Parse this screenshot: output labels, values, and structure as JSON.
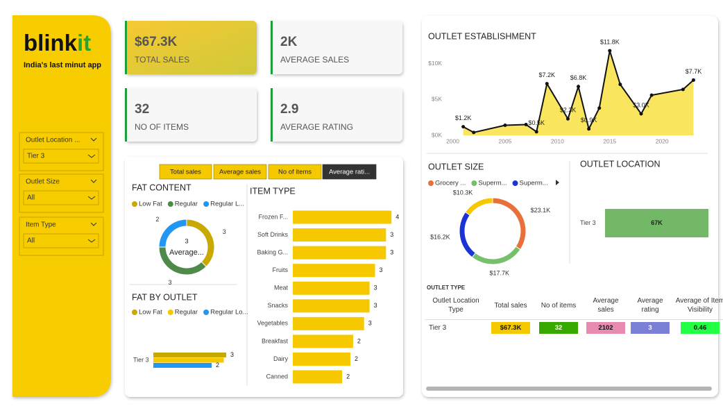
{
  "sidebar": {
    "logo": "blink",
    "logo_accent": "it",
    "tagline": "India's last minut app",
    "filters": [
      {
        "label": "Outlet Location ...",
        "value": "Tier 3"
      },
      {
        "label": "Outlet Size",
        "value": "All"
      },
      {
        "label": "Item Type",
        "value": "All"
      }
    ]
  },
  "cards": [
    {
      "value": "$67.3K",
      "label": "TOTAL SALES"
    },
    {
      "value": "2K",
      "label": "AVERAGE SALES"
    },
    {
      "value": "32",
      "label": "NO OF ITEMS"
    },
    {
      "value": "2.9",
      "label": "AVERAGE RATING"
    }
  ],
  "tabs": {
    "items": [
      "Total sales",
      "Average sales",
      "No of items",
      "Average rati..."
    ],
    "active": 3
  },
  "chart_data": [
    {
      "type": "pie",
      "title": "FAT CONTENT",
      "categories": [
        "Low Fat",
        "Regular",
        "Regular L..."
      ],
      "values": [
        3,
        3,
        2
      ],
      "colors": [
        "#c9a800",
        "#4f8a4b",
        "#2196f3"
      ],
      "center_value": 3,
      "center_label": "Average..."
    },
    {
      "type": "bar",
      "title": "FAT BY OUTLET",
      "categories": [
        "Tier 3"
      ],
      "xlim": [
        0,
        3.2
      ],
      "series": [
        {
          "name": "Low Fat",
          "color": "#c9a800",
          "values": [
            3
          ]
        },
        {
          "name": "Regular",
          "color": "#f5c800",
          "values": [
            2.9
          ],
          "labels": false
        },
        {
          "name": "Regular Lo...",
          "color": "#2196f3",
          "values": [
            2.4
          ],
          "value_labels": [
            "2"
          ]
        }
      ]
    },
    {
      "type": "bar",
      "title": "ITEM TYPE",
      "categories": [
        "Frozen F...",
        "Soft Drinks",
        "Baking G...",
        "Fruits",
        "Meat",
        "Snacks",
        "Vegetables",
        "Breakfast",
        "Dairy",
        "Canned"
      ],
      "values": [
        3.6,
        3.4,
        3.4,
        3.0,
        2.8,
        2.8,
        2.6,
        2.2,
        2.1,
        1.8
      ],
      "value_labels": [
        "4",
        "3",
        "3",
        "3",
        "3",
        "3",
        "3",
        "2",
        "2",
        "2"
      ],
      "color": "#f5c800",
      "xlim": [
        0,
        4
      ]
    },
    {
      "type": "line",
      "title": "OUTLET ESTABLISHMENT",
      "x": [
        2001,
        2002,
        2005,
        2007,
        2008,
        2009,
        2011,
        2012,
        2013,
        2014,
        2015,
        2016,
        2018,
        2019,
        2022,
        2023
      ],
      "values": [
        1200,
        400,
        1400,
        1500,
        500,
        7200,
        2300,
        6800,
        900,
        3800,
        11800,
        7100,
        3000,
        5600,
        6400,
        7700
      ],
      "value_labels": [
        "$1.2K",
        null,
        null,
        null,
        "$0.5K",
        "$7.2K",
        "$2.3K",
        "$6.8K",
        "$0.9K",
        null,
        "$11.8K",
        null,
        "$3.0K",
        null,
        null,
        "$7.7K"
      ],
      "color": "#111111",
      "area_color": "#f9e55e",
      "xlim": [
        1999.5,
        2023.5
      ],
      "xticks": [
        2000,
        2005,
        2010,
        2015,
        2020
      ],
      "ylim": [
        0,
        12000
      ],
      "yticks": [
        {
          "value": 0,
          "label": "$0K"
        },
        {
          "value": 5000,
          "label": "$5K"
        },
        {
          "value": 10000,
          "label": "$10K"
        }
      ]
    },
    {
      "type": "pie",
      "title": "OUTLET SIZE",
      "categories": [
        "Grocery ...",
        "Superm...",
        "Superm...",
        null
      ],
      "values": [
        23100,
        17700,
        16200,
        10300
      ],
      "value_labels": [
        "$23.1K",
        "$17.7K",
        "$16.2K",
        "$10.3K"
      ],
      "colors": [
        "#e8703a",
        "#76bf6b",
        "#1a33d4",
        "#f5c800"
      ]
    },
    {
      "type": "bar",
      "title": "OUTLET LOCATION",
      "categories": [
        "Tier 3"
      ],
      "values": [
        67300
      ],
      "value_labels": [
        "67K"
      ],
      "color": "#72b866",
      "xlim": [
        0,
        70000
      ],
      "label_position": "inside"
    }
  ],
  "table": {
    "title": "OUTLET TYPE",
    "header": [
      "Outlet Location Type",
      "Total sales",
      "No of items",
      "Average sales",
      "Average rating",
      "Average of Item Visibility"
    ],
    "rows": [
      [
        "Tier 3",
        "$67.3K",
        "32",
        "2102",
        "3",
        "0.46"
      ]
    ],
    "cell_colors": [
      "#f5c800",
      "#38a800",
      "#e88bb0",
      "#7b7fd6",
      "#22ff44"
    ]
  }
}
